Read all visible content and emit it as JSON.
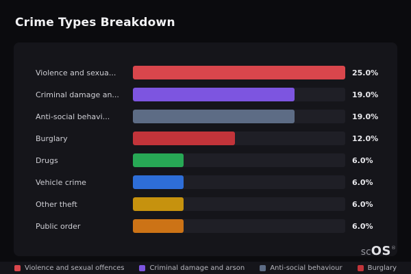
{
  "title": "Crime Types Breakdown",
  "chart_data": {
    "type": "bar",
    "orientation": "horizontal",
    "categories": [
      "Violence and sexua...",
      "Criminal damage an...",
      "Anti-social behavi...",
      "Burglary",
      "Drugs",
      "Vehicle crime",
      "Other theft",
      "Public order"
    ],
    "values": [
      25.0,
      19.0,
      19.0,
      12.0,
      6.0,
      6.0,
      6.0,
      6.0
    ],
    "value_labels": [
      "25.0%",
      "19.0%",
      "19.0%",
      "12.0%",
      "6.0%",
      "6.0%",
      "6.0%",
      "6.0%"
    ],
    "bar_colors": [
      "#d9464c",
      "#7d55e0",
      "#5d6c85",
      "#c2343a",
      "#27a855",
      "#2e6ed8",
      "#c6920e",
      "#cc7316"
    ],
    "max_value": 25.0,
    "track_color": "#1f1f26",
    "legend_position": "bottom",
    "legend": [
      {
        "label": "Violence and sexual offences",
        "color": "#d9464c"
      },
      {
        "label": "Criminal damage and arson",
        "color": "#7d55e0"
      },
      {
        "label": "Anti-social behaviour",
        "color": "#5d6c85"
      },
      {
        "label": "Burglary",
        "color": "#c2343a"
      }
    ]
  },
  "branding": {
    "logo_prefix": "sc",
    "logo_suffix": "OS",
    "registered_mark": "®"
  }
}
